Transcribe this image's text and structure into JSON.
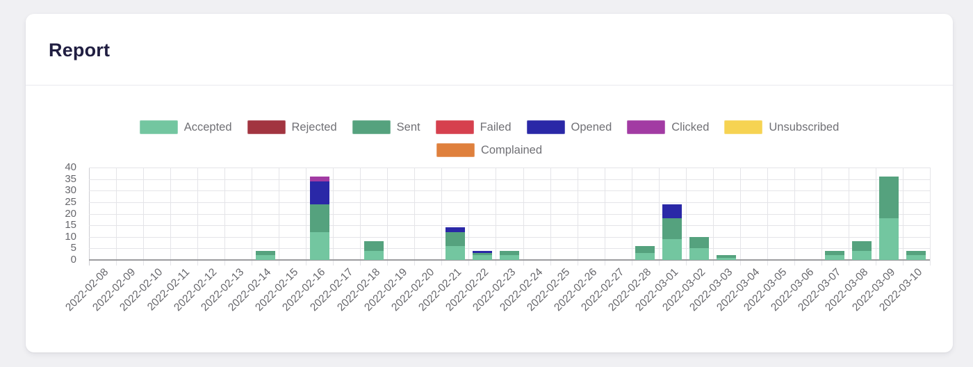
{
  "card": {
    "title": "Report"
  },
  "theme": {
    "page_bg": "#f0f0f3",
    "card_bg": "#ffffff",
    "divider": "#e9e9ee",
    "title_color": "#201e41",
    "grid_color": "#e4e4e8",
    "axis_line_color": "#9b9b9e",
    "y_axis_line_color": "#cdcdd2",
    "tick_label_color": "#66666b",
    "legend_label_color": "#707075"
  },
  "chart_data": {
    "type": "bar",
    "stacked": true,
    "title": "",
    "xlabel": "",
    "ylabel": "",
    "ylim": [
      0,
      40
    ],
    "ytick_step": 5,
    "yticks": [
      0,
      5,
      10,
      15,
      20,
      25,
      30,
      35,
      40
    ],
    "grid": true,
    "legend_position": "top-center",
    "categories": [
      "2022-02-08",
      "2022-02-09",
      "2022-02-10",
      "2022-02-11",
      "2022-02-12",
      "2022-02-13",
      "2022-02-14",
      "2022-02-15",
      "2022-02-16",
      "2022-02-17",
      "2022-02-18",
      "2022-02-19",
      "2022-02-20",
      "2022-02-21",
      "2022-02-22",
      "2022-02-23",
      "2022-02-24",
      "2022-02-25",
      "2022-02-26",
      "2022-02-27",
      "2022-02-28",
      "2022-03-01",
      "2022-03-02",
      "2022-03-03",
      "2022-03-04",
      "2022-03-05",
      "2022-03-06",
      "2022-03-07",
      "2022-03-08",
      "2022-03-09",
      "2022-03-10"
    ],
    "series": [
      {
        "name": "Accepted",
        "color": "#73c6a0",
        "values": [
          0,
          0,
          0,
          0,
          0,
          0,
          2,
          0,
          12,
          0,
          4,
          0,
          0,
          6,
          2,
          2,
          0,
          0,
          0,
          0,
          3,
          9,
          5,
          1,
          0,
          0,
          0,
          2,
          4,
          18,
          2
        ]
      },
      {
        "name": "Rejected",
        "color": "#a23540",
        "values": [
          0,
          0,
          0,
          0,
          0,
          0,
          0,
          0,
          0,
          0,
          0,
          0,
          0,
          0,
          0,
          0,
          0,
          0,
          0,
          0,
          0,
          0,
          0,
          0,
          0,
          0,
          0,
          0,
          0,
          0,
          0
        ]
      },
      {
        "name": "Sent",
        "color": "#55a27e",
        "values": [
          0,
          0,
          0,
          0,
          0,
          0,
          2,
          0,
          12,
          0,
          4,
          0,
          0,
          6,
          1,
          2,
          0,
          0,
          0,
          0,
          3,
          9,
          5,
          1,
          0,
          0,
          0,
          2,
          4,
          18,
          2
        ]
      },
      {
        "name": "Failed",
        "color": "#d6404e",
        "values": [
          0,
          0,
          0,
          0,
          0,
          0,
          0,
          0,
          0,
          0,
          0,
          0,
          0,
          0,
          0,
          0,
          0,
          0,
          0,
          0,
          0,
          0,
          0,
          0,
          0,
          0,
          0,
          0,
          0,
          0,
          0
        ]
      },
      {
        "name": "Opened",
        "color": "#2a28a7",
        "values": [
          0,
          0,
          0,
          0,
          0,
          0,
          0,
          0,
          10,
          0,
          0,
          0,
          0,
          2,
          1,
          0,
          0,
          0,
          0,
          0,
          0,
          6,
          0,
          0,
          0,
          0,
          0,
          0,
          0,
          0,
          0
        ]
      },
      {
        "name": "Clicked",
        "color": "#a23ba3",
        "values": [
          0,
          0,
          0,
          0,
          0,
          0,
          0,
          0,
          2,
          0,
          0,
          0,
          0,
          0,
          0,
          0,
          0,
          0,
          0,
          0,
          0,
          0,
          0,
          0,
          0,
          0,
          0,
          0,
          0,
          0,
          0
        ]
      },
      {
        "name": "Unsubscribed",
        "color": "#f6d352",
        "values": [
          0,
          0,
          0,
          0,
          0,
          0,
          0,
          0,
          0,
          0,
          0,
          0,
          0,
          0,
          0,
          0,
          0,
          0,
          0,
          0,
          0,
          0,
          0,
          0,
          0,
          0,
          0,
          0,
          0,
          0,
          0
        ]
      },
      {
        "name": "Complained",
        "color": "#df803d",
        "values": [
          0,
          0,
          0,
          0,
          0,
          0,
          0,
          0,
          0,
          0,
          0,
          0,
          0,
          0,
          0,
          0,
          0,
          0,
          0,
          0,
          0,
          0,
          0,
          0,
          0,
          0,
          0,
          0,
          0,
          0,
          0
        ]
      }
    ]
  }
}
